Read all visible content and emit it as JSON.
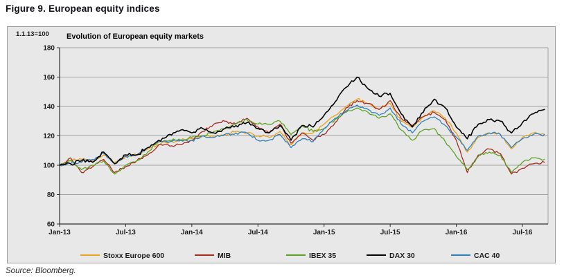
{
  "figure": {
    "title": "Figure 9. European equity indices",
    "source": "Source: Bloomberg."
  },
  "chart_data": {
    "type": "line",
    "title": "Evolution of European equity markets",
    "note": "1.1.13=100",
    "grid": true,
    "legend_position": "bottom",
    "ylim": [
      60,
      180
    ],
    "y_ticks": [
      180,
      160,
      140,
      120,
      100,
      80,
      60
    ],
    "x_tick_labels": [
      "Jan-13",
      "Jul-13",
      "Jan-14",
      "Jul-14",
      "Jan-15",
      "Jul-15",
      "Jan-16",
      "Jul-16"
    ],
    "x": [
      "Jan-13",
      "Feb-13",
      "Mar-13",
      "Apr-13",
      "May-13",
      "Jun-13",
      "Jul-13",
      "Aug-13",
      "Sep-13",
      "Oct-13",
      "Nov-13",
      "Dec-13",
      "Jan-14",
      "Feb-14",
      "Mar-14",
      "Apr-14",
      "May-14",
      "Jun-14",
      "Jul-14",
      "Aug-14",
      "Sep-14",
      "Oct-14",
      "Nov-14",
      "Dec-14",
      "Jan-15",
      "Feb-15",
      "Mar-15",
      "Apr-15",
      "May-15",
      "Jun-15",
      "Jul-15",
      "Aug-15",
      "Sep-15",
      "Oct-15",
      "Nov-15",
      "Dec-15",
      "Jan-16",
      "Feb-16",
      "Mar-16",
      "Apr-16",
      "May-16",
      "Jun-16",
      "Jul-16",
      "Aug-16",
      "Sep-16"
    ],
    "series": [
      {
        "name": "Stoxx Europe 600",
        "color": "#e9a31d",
        "values": [
          100,
          103,
          104,
          103,
          107,
          102,
          106,
          107,
          111,
          114,
          116,
          117,
          118,
          120,
          119,
          121,
          123,
          122,
          120,
          119,
          123,
          114,
          122,
          122,
          128,
          134,
          140,
          145,
          142,
          138,
          142,
          130,
          126,
          133,
          137,
          132,
          122,
          109,
          119,
          122,
          121,
          111,
          119,
          122,
          121
        ]
      },
      {
        "name": "MIB",
        "color": "#a8291e",
        "values": [
          100,
          105,
          95,
          99,
          104,
          95,
          99,
          103,
          107,
          114,
          113,
          114,
          117,
          123,
          128,
          130,
          128,
          132,
          126,
          122,
          128,
          115,
          122,
          117,
          121,
          129,
          139,
          144,
          142,
          138,
          144,
          132,
          127,
          133,
          136,
          131,
          117,
          95,
          107,
          111,
          108,
          94,
          98,
          101,
          102
        ]
      },
      {
        "name": "IBEX 35",
        "color": "#5ea021",
        "values": [
          100,
          103,
          97,
          100,
          103,
          94,
          100,
          103,
          109,
          116,
          117,
          117,
          119,
          120,
          123,
          125,
          128,
          131,
          128,
          128,
          130,
          121,
          127,
          123,
          125,
          131,
          136,
          139,
          136,
          132,
          135,
          124,
          117,
          124,
          125,
          116,
          106,
          97,
          106,
          109,
          107,
          95,
          102,
          105,
          104
        ]
      },
      {
        "name": "DAX 30",
        "color": "#000000",
        "values": [
          100,
          101,
          103,
          102,
          109,
          101,
          107,
          107,
          112,
          117,
          121,
          124,
          122,
          125,
          122,
          125,
          127,
          129,
          125,
          122,
          127,
          117,
          127,
          126,
          134,
          143,
          153,
          160,
          152,
          147,
          149,
          135,
          126,
          136,
          145,
          139,
          126,
          118,
          128,
          131,
          130,
          122,
          129,
          135,
          138
        ]
      },
      {
        "name": "CAC 40",
        "color": "#2e80ba",
        "values": [
          100,
          101,
          102,
          104,
          108,
          101,
          106,
          107,
          112,
          116,
          116,
          117,
          117,
          120,
          119,
          121,
          122,
          122,
          117,
          117,
          121,
          112,
          118,
          116,
          125,
          132,
          137,
          141,
          138,
          134,
          139,
          128,
          122,
          130,
          133,
          127,
          119,
          110,
          120,
          122,
          121,
          112,
          118,
          121,
          121
        ]
      }
    ]
  }
}
